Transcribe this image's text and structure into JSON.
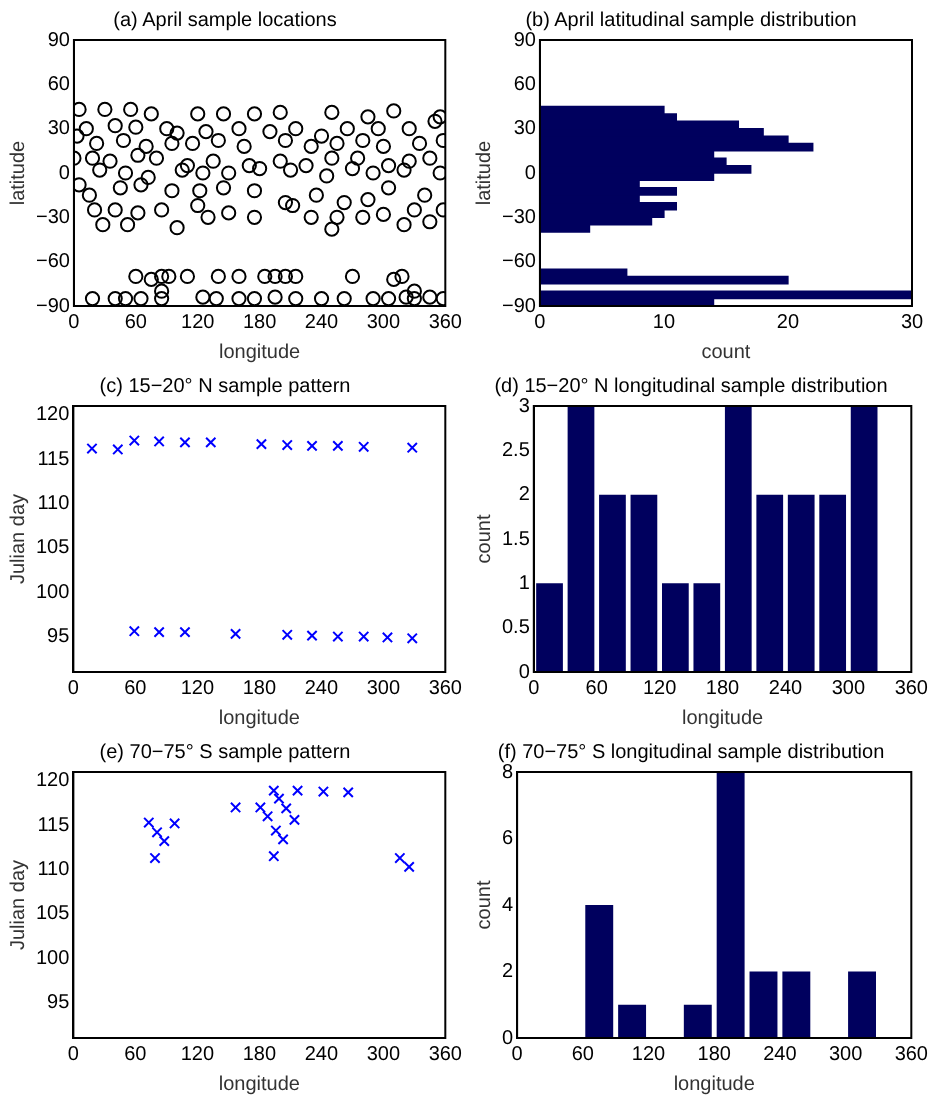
{
  "chart_data": [
    {
      "type": "scatter",
      "title": "(a) April sample locations",
      "xlabel": "longitude",
      "ylabel": "latitude",
      "xlim": [
        0,
        360
      ],
      "xticks": [
        0,
        60,
        120,
        180,
        240,
        300,
        360
      ],
      "ylim": [
        -90,
        90
      ],
      "yticks": [
        -90,
        -60,
        -30,
        0,
        30,
        60,
        90
      ],
      "marker": "circle",
      "color": "#000000",
      "x": [
        5,
        30,
        55,
        75,
        120,
        145,
        175,
        200,
        250,
        285,
        310,
        355,
        12,
        40,
        60,
        90,
        100,
        128,
        160,
        190,
        215,
        240,
        265,
        295,
        325,
        350,
        3,
        22,
        48,
        70,
        95,
        115,
        140,
        165,
        205,
        230,
        255,
        280,
        300,
        335,
        358,
        0,
        18,
        35,
        62,
        80,
        110,
        135,
        170,
        200,
        225,
        250,
        275,
        305,
        325,
        345,
        5,
        25,
        50,
        72,
        105,
        125,
        150,
        180,
        210,
        245,
        270,
        290,
        320,
        355,
        15,
        45,
        65,
        95,
        122,
        145,
        175,
        205,
        235,
        262,
        285,
        305,
        340,
        20,
        40,
        62,
        85,
        120,
        150,
        175,
        212,
        230,
        255,
        280,
        300,
        330,
        358,
        28,
        52,
        100,
        130,
        250,
        320,
        345,
        60,
        75,
        85,
        92,
        110,
        140,
        160,
        185,
        195,
        205,
        215,
        270,
        310,
        318,
        18,
        40,
        50,
        65,
        85,
        125,
        138,
        160,
        175,
        195,
        215,
        240,
        262,
        290,
        305,
        322,
        330,
        345,
        358,
        85,
        330
      ],
      "values": [
        43,
        43,
        43,
        40,
        40,
        40,
        40,
        41,
        41,
        38,
        42,
        38,
        30,
        32,
        31,
        30,
        27,
        28,
        30,
        28,
        30,
        25,
        30,
        30,
        30,
        35,
        25,
        20,
        22,
        18,
        20,
        20,
        22,
        18,
        22,
        18,
        20,
        22,
        18,
        20,
        22,
        10,
        10,
        8,
        12,
        10,
        5,
        8,
        5,
        8,
        5,
        10,
        10,
        5,
        8,
        10,
        -8,
        2,
        0,
        -3,
        2,
        0,
        0,
        3,
        2,
        -2,
        3,
        0,
        2,
        0,
        -15,
        -10,
        -8,
        -12,
        -12,
        -10,
        -12,
        -20,
        -15,
        -20,
        -18,
        -10,
        -15,
        -25,
        -25,
        -27,
        -25,
        -22,
        -27,
        -30,
        -22,
        -30,
        -30,
        -30,
        -28,
        -25,
        -25,
        -35,
        -35,
        -37,
        -30,
        -38,
        -35,
        -33,
        -70,
        -72,
        -70,
        -70,
        -70,
        -70,
        -70,
        -70,
        -70,
        -70,
        -70,
        -70,
        -72,
        -70,
        -85,
        -85,
        -85,
        -85,
        -85,
        -84,
        -85,
        -85,
        -85,
        -84,
        -85,
        -85,
        -85,
        -85,
        -85,
        -84,
        -85,
        -84,
        -85,
        -80,
        -80
      ]
    },
    {
      "type": "histogram",
      "orientation": "horizontal",
      "title": "(b) April latitudinal sample distribution",
      "xlabel": "count",
      "ylabel": "latitude",
      "xlim": [
        0,
        30
      ],
      "xticks": [
        0,
        10,
        20,
        30
      ],
      "ylim": [
        -90,
        90
      ],
      "yticks": [
        -90,
        -60,
        -30,
        0,
        30,
        60,
        90
      ],
      "color": "#00005e",
      "bins": [
        -90,
        -85,
        -80,
        -75,
        -70,
        -65,
        -60,
        -55,
        -50,
        -45,
        -40,
        -35,
        -30,
        -25,
        -20,
        -15,
        -10,
        -5,
        0,
        5,
        10,
        15,
        20,
        25,
        30,
        35,
        40,
        45
      ],
      "values": [
        14,
        30,
        0,
        20,
        7,
        0,
        0,
        0,
        0,
        0,
        4,
        9,
        10,
        11,
        8,
        11,
        8,
        14,
        17,
        15,
        14,
        22,
        20,
        18,
        16,
        11,
        10
      ]
    },
    {
      "type": "scatter",
      "title": "(c) 15−20° N sample pattern",
      "xlabel": "longitude",
      "ylabel": "Julian day",
      "xlim": [
        0,
        360
      ],
      "xticks": [
        0,
        60,
        120,
        180,
        240,
        300,
        360
      ],
      "ylim": [
        91,
        121
      ],
      "yticks": [
        95,
        100,
        105,
        110,
        115,
        120
      ],
      "marker": "cross",
      "color": "#0000ff",
      "x": [
        18,
        43,
        59,
        83,
        108,
        133,
        182,
        207,
        231,
        256,
        281,
        328,
        59,
        83,
        108,
        157,
        207,
        231,
        256,
        281,
        304,
        328
      ],
      "values": [
        116.2,
        116.1,
        117.1,
        117,
        116.9,
        116.9,
        116.7,
        116.6,
        116.5,
        116.5,
        116.4,
        116.3,
        95.6,
        95.5,
        95.5,
        95.3,
        95.2,
        95.1,
        95,
        95,
        94.9,
        94.8
      ]
    },
    {
      "type": "histogram",
      "title": "(d) 15−20° N longitudinal sample distribution",
      "xlabel": "longitude",
      "ylabel": "count",
      "xlim": [
        0,
        360
      ],
      "xticks": [
        0,
        60,
        120,
        180,
        240,
        300,
        360
      ],
      "ylim": [
        0,
        3
      ],
      "yticks": [
        0,
        0.5,
        1,
        1.5,
        2,
        2.5,
        3
      ],
      "color": "#00005e",
      "bins": [
        0,
        30,
        60,
        90,
        120,
        150,
        180,
        210,
        240,
        270,
        300,
        330
      ],
      "values": [
        1,
        3,
        2,
        2,
        1,
        1,
        3,
        2,
        2,
        2,
        3
      ]
    },
    {
      "type": "scatter",
      "title": "(e) 70−75° S sample pattern",
      "xlabel": "longitude",
      "ylabel": "Julian day",
      "xlim": [
        0,
        360
      ],
      "xticks": [
        0,
        60,
        120,
        180,
        240,
        300,
        360
      ],
      "ylim": [
        91,
        121
      ],
      "yticks": [
        95,
        100,
        105,
        110,
        115,
        120
      ],
      "marker": "cross",
      "color": "#0000ff",
      "x": [
        73,
        81,
        88,
        79,
        98,
        157,
        181,
        188,
        194,
        199,
        206,
        214,
        196,
        203,
        194,
        217,
        242,
        266,
        316,
        325
      ],
      "values": [
        115.3,
        114.2,
        113.2,
        111.3,
        115.2,
        117,
        117,
        116,
        118.9,
        118,
        116.9,
        115.6,
        114.4,
        113.4,
        111.5,
        118.9,
        118.8,
        118.7,
        111.3,
        110.3
      ]
    },
    {
      "type": "histogram",
      "title": "(f) 70−75° S longitudinal sample distribution",
      "xlabel": "longitude",
      "ylabel": "count",
      "xlim": [
        0,
        360
      ],
      "xticks": [
        0,
        60,
        120,
        180,
        240,
        300,
        360
      ],
      "ylim": [
        0,
        8
      ],
      "yticks": [
        0,
        2,
        4,
        6,
        8
      ],
      "color": "#00005e",
      "bins": [
        0,
        30,
        60,
        90,
        120,
        150,
        180,
        210,
        240,
        270,
        300,
        330
      ],
      "values": [
        0,
        0,
        4,
        1,
        0,
        1,
        8,
        2,
        2,
        0,
        2
      ]
    }
  ]
}
